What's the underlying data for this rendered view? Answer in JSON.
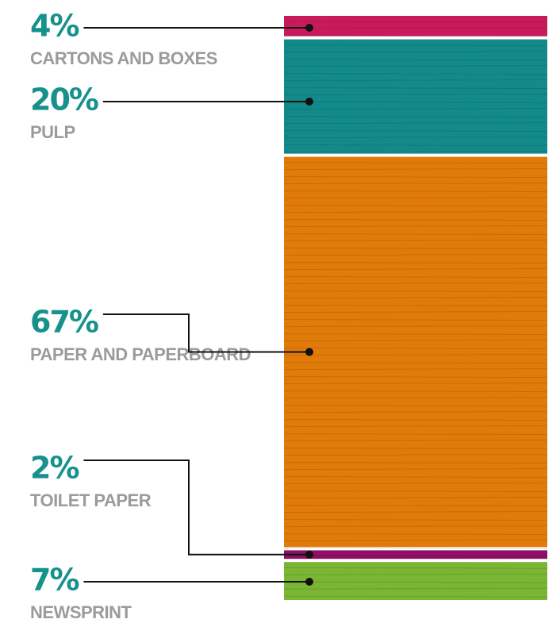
{
  "chart_data": {
    "type": "stack",
    "series": [
      {
        "name": "CARTONS AND BOXES",
        "color": "#c91b5c",
        "values": [
          4
        ],
        "value_labels": [
          "4%"
        ]
      },
      {
        "name": "PULP",
        "color": "#138a8a",
        "values": [
          20
        ],
        "value_labels": [
          "20%"
        ]
      },
      {
        "name": "PAPER AND PAPERBOARD",
        "color": "#e07b0a",
        "values": [
          67
        ],
        "value_labels": [
          "67%"
        ]
      },
      {
        "name": "TOILET PAPER",
        "color": "#8e1065",
        "values": [
          2
        ],
        "value_labels": [
          "2%"
        ]
      },
      {
        "name": "NEWSPRINT",
        "color": "#7ab534",
        "values": [
          7
        ],
        "value_labels": [
          "7%"
        ]
      }
    ]
  }
}
